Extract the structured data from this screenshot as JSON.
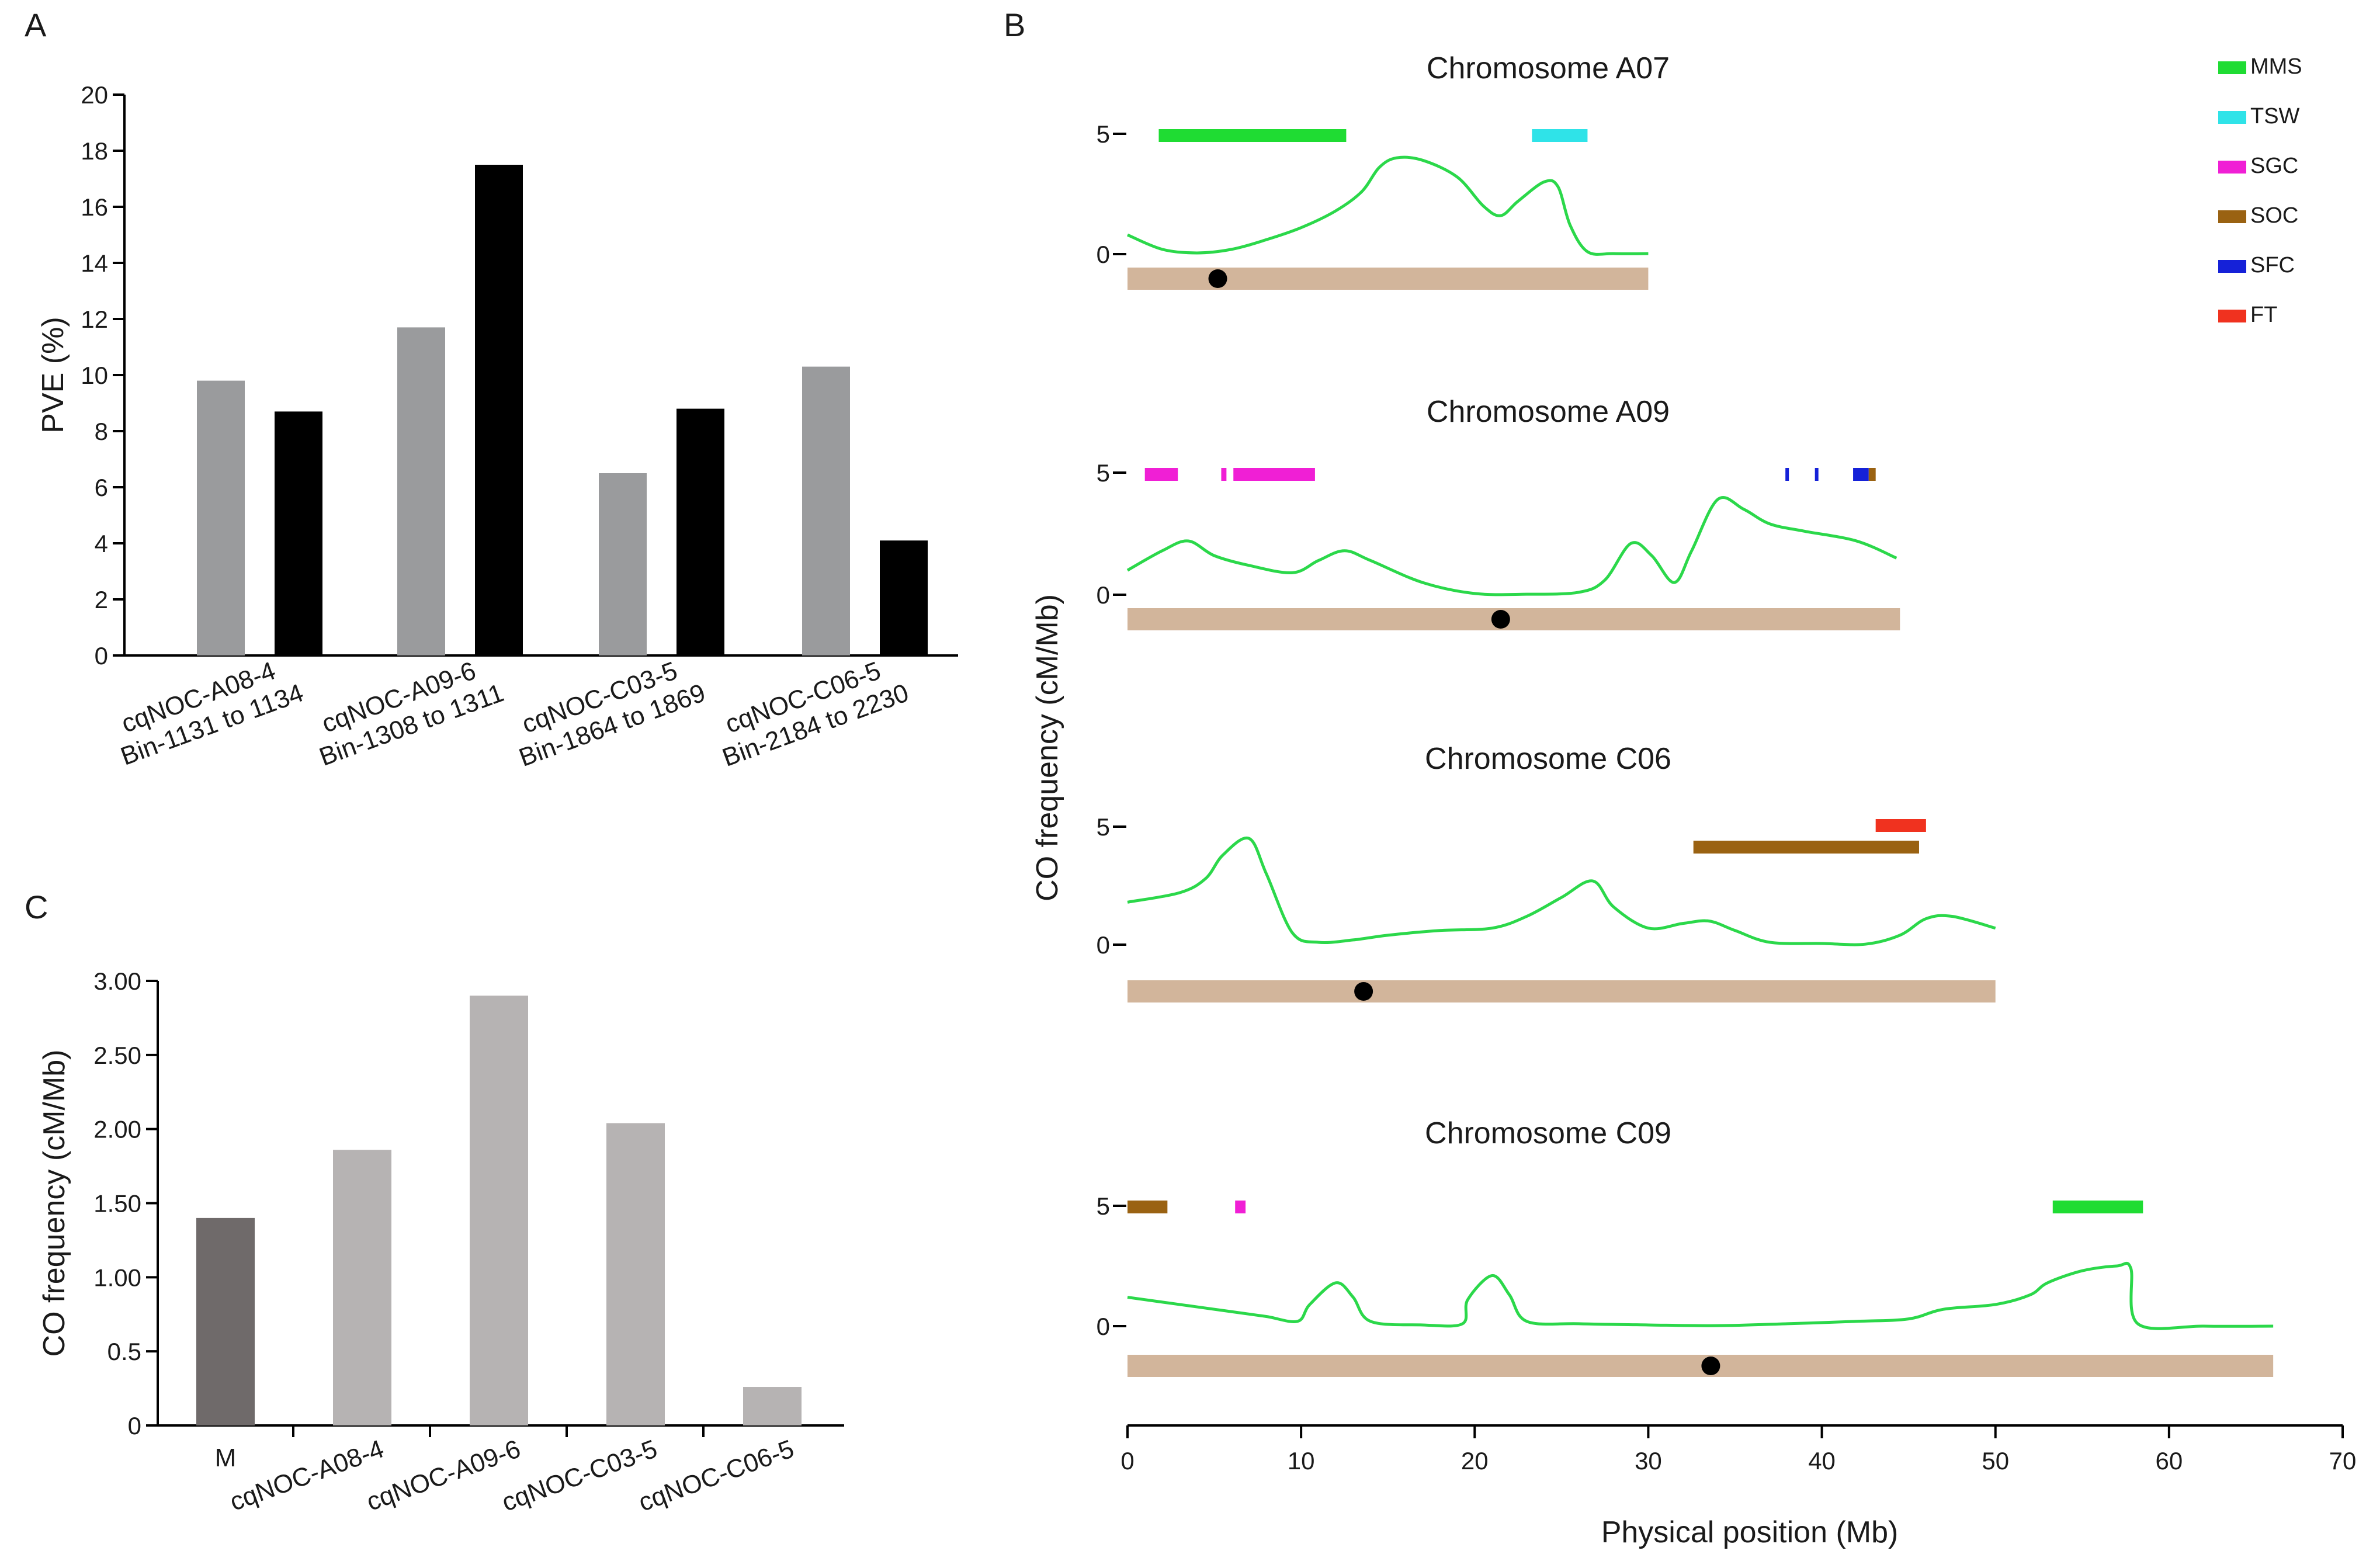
{
  "chart_data": [
    {
      "panel": "A",
      "type": "bar",
      "ylabel": "PVE (%)",
      "ylim": [
        0,
        20
      ],
      "yticks": [
        "0",
        "2",
        "4",
        "6",
        "8",
        "10",
        "12",
        "14",
        "16",
        "18",
        "20"
      ],
      "categories": [
        [
          "cqNOC-A08-4",
          "Bin-1131 to 1134"
        ],
        [
          "cqNOC-A09-6",
          "Bin-1308 to 1311"
        ],
        [
          "cqNOC-C03-5",
          "Bin-1864 to 1869"
        ],
        [
          "cqNOC-C06-5",
          "Bin-2184 to 2230"
        ]
      ],
      "series": [
        {
          "name": "grey",
          "color": "#9a9b9d",
          "values": [
            9.8,
            11.7,
            6.5,
            10.3
          ]
        },
        {
          "name": "black",
          "color": "#000000",
          "values": [
            8.7,
            17.5,
            8.8,
            4.1
          ]
        }
      ]
    },
    {
      "panel": "B",
      "type": "line",
      "xlabel": "Physical position (Mb)",
      "ylabel": "CO frequency (cM/Mb)",
      "xlim": [
        0,
        70
      ],
      "xticks": [
        "0",
        "10",
        "20",
        "30",
        "40",
        "50",
        "60",
        "70"
      ],
      "yticks": [
        "0",
        "5"
      ],
      "legend": [
        {
          "name": "MMS",
          "color": "#1fdc33"
        },
        {
          "name": "TSW",
          "color": "#2fe3e8"
        },
        {
          "name": "SGC",
          "color": "#f01fd5"
        },
        {
          "name": "SOC",
          "color": "#9a6212"
        },
        {
          "name": "SFC",
          "color": "#1521d8"
        },
        {
          "name": "FT",
          "color": "#f0321f"
        }
      ],
      "chromosomes": [
        {
          "title": "Chromosome A07",
          "length": 30,
          "centromere": 5.2,
          "qtl": [
            {
              "trait": "MMS",
              "start": 1.8,
              "end": 12.6,
              "row": 0
            },
            {
              "trait": "TSW",
              "start": 23.3,
              "end": 26.5,
              "row": 0
            }
          ],
          "curve": [
            [
              0,
              0.8
            ],
            [
              2,
              0.2
            ],
            [
              4,
              0.05
            ],
            [
              6,
              0.2
            ],
            [
              8,
              0.6
            ],
            [
              10,
              1.1
            ],
            [
              12,
              1.8
            ],
            [
              13.5,
              2.6
            ],
            [
              14.5,
              3.6
            ],
            [
              15.5,
              4.0
            ],
            [
              17,
              3.9
            ],
            [
              19,
              3.2
            ],
            [
              20.5,
              2.0
            ],
            [
              21.5,
              1.6
            ],
            [
              22.5,
              2.2
            ],
            [
              24,
              3.0
            ],
            [
              24.8,
              2.8
            ],
            [
              25.5,
              1.2
            ],
            [
              26.5,
              0.1
            ],
            [
              28,
              0.02
            ],
            [
              30,
              0.02
            ]
          ]
        },
        {
          "title": "Chromosome A09",
          "length": 44.5,
          "centromere": 21.5,
          "qtl": [
            {
              "trait": "SGC",
              "start": 1.0,
              "end": 2.9,
              "row": 0
            },
            {
              "trait": "SGC",
              "start": 5.4,
              "end": 5.7,
              "row": 0
            },
            {
              "trait": "SGC",
              "start": 6.1,
              "end": 10.8,
              "row": 0
            },
            {
              "trait": "SFC",
              "start": 37.9,
              "end": 38.1,
              "row": 0
            },
            {
              "trait": "SFC",
              "start": 39.6,
              "end": 39.8,
              "row": 0
            },
            {
              "trait": "SFC",
              "start": 41.8,
              "end": 42.7,
              "row": 0
            },
            {
              "trait": "SOC",
              "start": 42.7,
              "end": 43.1,
              "row": 0
            }
          ],
          "curve": [
            [
              0,
              1.0
            ],
            [
              2,
              1.8
            ],
            [
              3.5,
              2.2
            ],
            [
              5,
              1.6
            ],
            [
              7,
              1.2
            ],
            [
              9.5,
              0.9
            ],
            [
              11,
              1.4
            ],
            [
              12.5,
              1.8
            ],
            [
              14,
              1.4
            ],
            [
              17,
              0.5
            ],
            [
              20,
              0.05
            ],
            [
              23,
              0.02
            ],
            [
              26,
              0.1
            ],
            [
              27.5,
              0.6
            ],
            [
              29,
              2.1
            ],
            [
              30.2,
              1.6
            ],
            [
              31.5,
              0.5
            ],
            [
              32.5,
              1.8
            ],
            [
              34,
              3.9
            ],
            [
              35.5,
              3.5
            ],
            [
              37,
              2.9
            ],
            [
              39,
              2.6
            ],
            [
              42,
              2.2
            ],
            [
              44.3,
              1.5
            ]
          ]
        },
        {
          "title": "Chromosome C06",
          "length": 50,
          "centromere": 13.6,
          "qtl": [
            {
              "trait": "FT",
              "start": 43.1,
              "end": 46.0,
              "row": 0
            },
            {
              "trait": "SOC",
              "start": 32.6,
              "end": 45.6,
              "row": 1
            }
          ],
          "curve": [
            [
              0,
              1.8
            ],
            [
              3,
              2.2
            ],
            [
              4.5,
              2.8
            ],
            [
              5.5,
              3.8
            ],
            [
              7,
              4.5
            ],
            [
              8,
              3.0
            ],
            [
              9.5,
              0.5
            ],
            [
              11,
              0.1
            ],
            [
              13,
              0.2
            ],
            [
              15,
              0.4
            ],
            [
              18,
              0.6
            ],
            [
              21,
              0.7
            ],
            [
              23,
              1.2
            ],
            [
              25,
              2.0
            ],
            [
              26.8,
              2.7
            ],
            [
              28,
              1.6
            ],
            [
              30,
              0.7
            ],
            [
              32,
              0.9
            ],
            [
              33.5,
              1.0
            ],
            [
              35,
              0.6
            ],
            [
              37,
              0.1
            ],
            [
              40,
              0.05
            ],
            [
              42.5,
              0.02
            ],
            [
              44.5,
              0.4
            ],
            [
              46,
              1.1
            ],
            [
              47.5,
              1.2
            ],
            [
              50,
              0.7
            ]
          ]
        },
        {
          "title": "Chromosome C09",
          "length": 66,
          "centromere": 33.6,
          "qtl": [
            {
              "trait": "SOC",
              "start": 0.0,
              "end": 2.3,
              "row": 0
            },
            {
              "trait": "SGC",
              "start": 6.2,
              "end": 6.8,
              "row": 0
            },
            {
              "trait": "MMS",
              "start": 53.3,
              "end": 58.5,
              "row": 0
            }
          ],
          "curve": [
            [
              0,
              1.2
            ],
            [
              3,
              0.9
            ],
            [
              6,
              0.6
            ],
            [
              8,
              0.4
            ],
            [
              9.8,
              0.2
            ],
            [
              10.5,
              0.9
            ],
            [
              12,
              1.8
            ],
            [
              13,
              1.2
            ],
            [
              14,
              0.2
            ],
            [
              17,
              0.05
            ],
            [
              19.3,
              0.1
            ],
            [
              19.6,
              1.1
            ],
            [
              21,
              2.1
            ],
            [
              22,
              1.3
            ],
            [
              23,
              0.2
            ],
            [
              26,
              0.1
            ],
            [
              30,
              0.05
            ],
            [
              34,
              0.02
            ],
            [
              38,
              0.1
            ],
            [
              42,
              0.2
            ],
            [
              45,
              0.3
            ],
            [
              47,
              0.7
            ],
            [
              50,
              0.9
            ],
            [
              52,
              1.3
            ],
            [
              53,
              1.8
            ],
            [
              55,
              2.3
            ],
            [
              57,
              2.5
            ],
            [
              57.8,
              2.4
            ],
            [
              58.2,
              0.1
            ],
            [
              62,
              0.0
            ],
            [
              66,
              0.0
            ]
          ]
        }
      ]
    },
    {
      "panel": "C",
      "type": "bar",
      "ylabel": "CO frequency (cM/Mb)",
      "ylim": [
        0,
        3.0
      ],
      "yticks": [
        "0",
        "0.5",
        "1.00",
        "1.50",
        "2.00",
        "2.50",
        "3.00"
      ],
      "categories": [
        "M",
        "cqNOC-A08-4",
        "cqNOC-A09-6",
        "cqNOC-C03-5",
        "cqNOC-C06-5"
      ],
      "values": [
        1.4,
        1.86,
        2.9,
        2.04,
        0.26
      ],
      "colors": [
        "#6f6a6a",
        "#b6b3b3",
        "#b6b3b3",
        "#b6b3b3",
        "#b6b3b3"
      ]
    }
  ]
}
